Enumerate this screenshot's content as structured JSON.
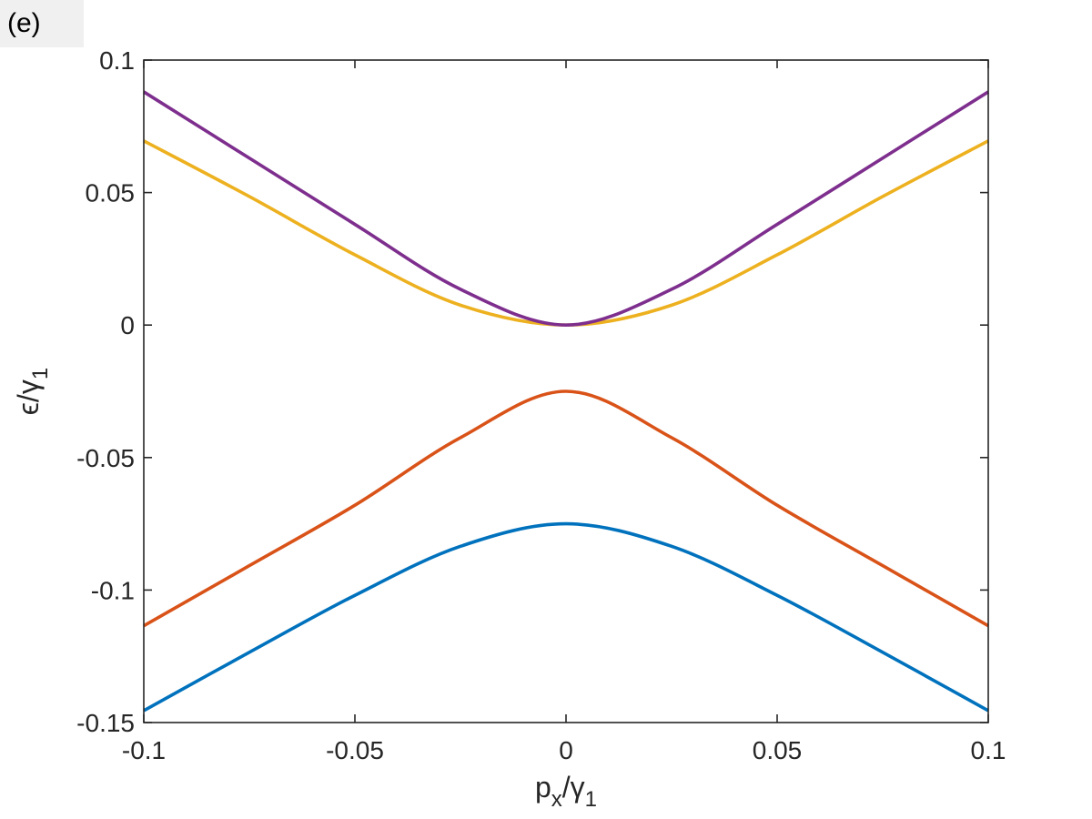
{
  "panel_label": "(e)",
  "chart_data": {
    "type": "line",
    "xlabel": {
      "base": "p",
      "sub": "x",
      "slash": "/",
      "greek": "γ",
      "greek_sub": "1"
    },
    "ylabel": {
      "base": "ϵ",
      "slash": "/",
      "greek": "γ",
      "greek_sub": "1"
    },
    "xlim": [
      -0.1,
      0.1
    ],
    "ylim": [
      -0.15,
      0.1
    ],
    "xticks": [
      -0.1,
      -0.05,
      0,
      0.05,
      0.1
    ],
    "xtick_labels": [
      "-0.1",
      "-0.05",
      "0",
      "0.05",
      "0.1"
    ],
    "yticks": [
      -0.15,
      -0.1,
      -0.05,
      0,
      0.05,
      0.1
    ],
    "ytick_labels": [
      "-0.15",
      "-0.1",
      "-0.05",
      "0",
      "0.05",
      "0.1"
    ],
    "grid": false,
    "series": [
      {
        "color": "#0072BD",
        "x": [
          -0.1,
          -0.075,
          -0.05,
          -0.025,
          0,
          0.025,
          0.05,
          0.075,
          0.1
        ],
        "y": [
          -0.1455,
          -0.1235,
          -0.102,
          -0.0835,
          -0.075,
          -0.0835,
          -0.102,
          -0.1235,
          -0.1455
        ]
      },
      {
        "color": "#D95319",
        "x": [
          -0.1,
          -0.075,
          -0.05,
          -0.025,
          0,
          0.025,
          0.05,
          0.075,
          0.1
        ],
        "y": [
          -0.1135,
          -0.0908,
          -0.068,
          -0.0425,
          -0.025,
          -0.0425,
          -0.068,
          -0.0908,
          -0.1135
        ]
      },
      {
        "color": "#EDB120",
        "x": [
          -0.1,
          -0.075,
          -0.05,
          -0.025,
          0,
          0.025,
          0.05,
          0.075,
          0.1
        ],
        "y": [
          0.0695,
          0.0485,
          0.0265,
          0.0075,
          0,
          0.0075,
          0.0265,
          0.0485,
          0.0695
        ]
      },
      {
        "color": "#7E2F8E",
        "x": [
          -0.1,
          -0.075,
          -0.05,
          -0.025,
          0,
          0.025,
          0.05,
          0.075,
          0.1
        ],
        "y": [
          0.088,
          0.063,
          0.038,
          0.0135,
          0,
          0.0135,
          0.038,
          0.063,
          0.088
        ]
      }
    ]
  }
}
